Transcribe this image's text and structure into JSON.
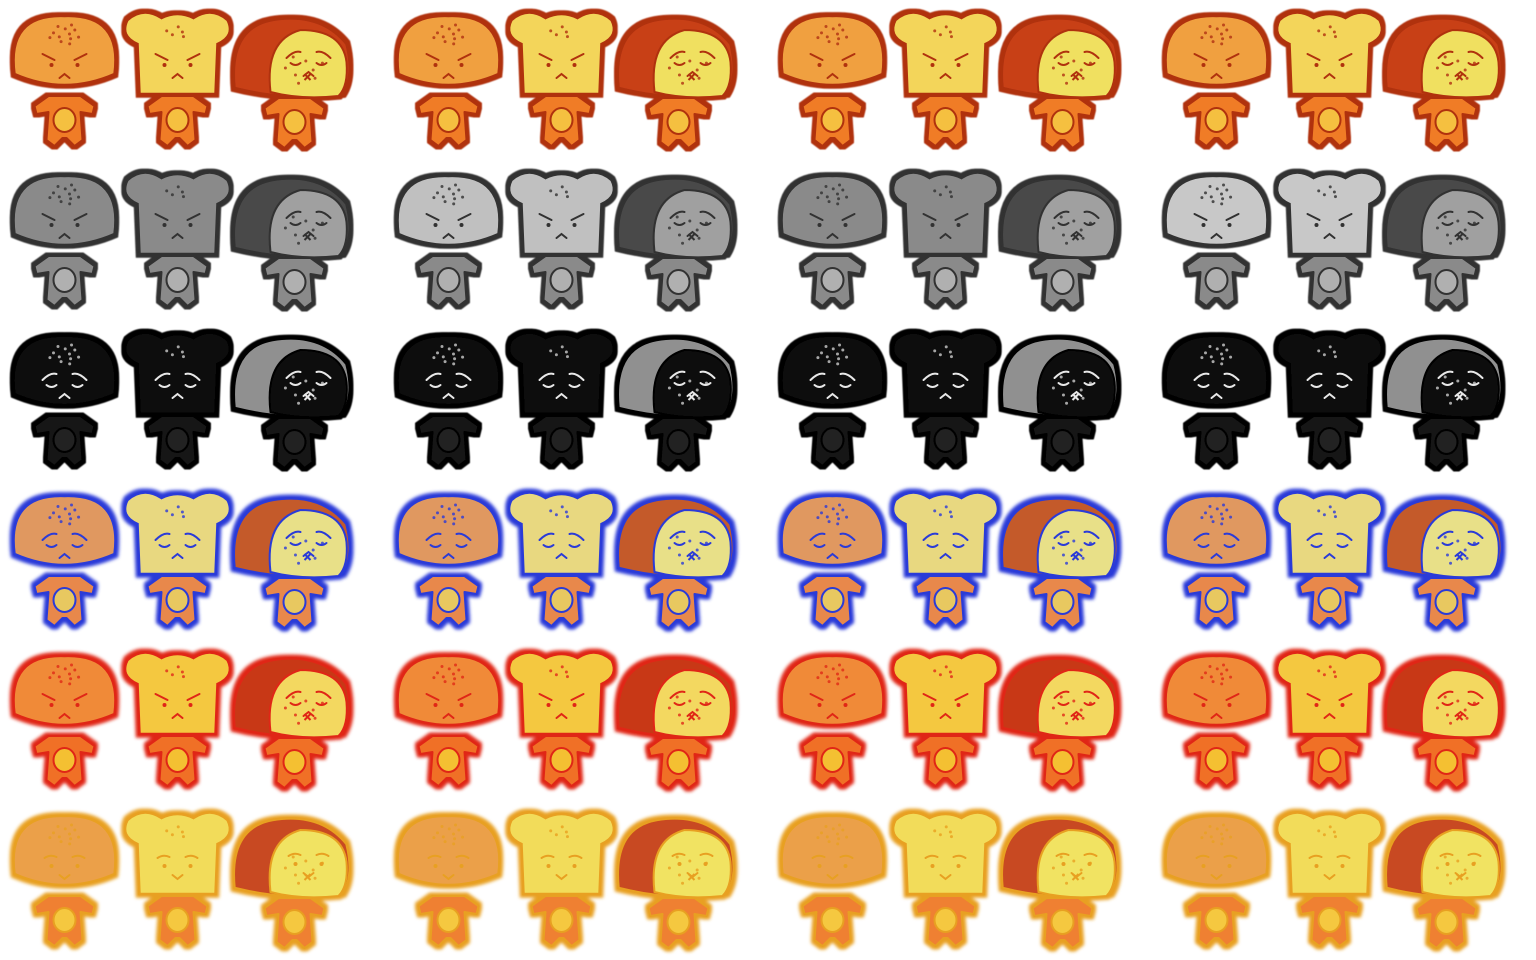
{
  "sheet": {
    "sets_per_row": 4,
    "characters": [
      {
        "type": "round-bun",
        "name": ""
      },
      {
        "type": "toast-slice",
        "name": ""
      },
      {
        "type": "loaf-bread",
        "name": ""
      }
    ],
    "rows": [
      {
        "variant": "normal",
        "mood": "angry",
        "outline": "#b03010",
        "colors": {
          "bun": "#f0a040",
          "toast": "#f3d55a",
          "loaf_crust": "#c84018",
          "loaf_face": "#f0e060",
          "body": "#f07c28",
          "belly": "#f5c040"
        }
      },
      {
        "variant": "grayscale",
        "mood": "angry",
        "outline": "#303030",
        "colors": {
          "bun": "#8c8c8c",
          "toast": "#a8a8a8",
          "loaf_crust": "#4a4a4a",
          "loaf_face": "#a0a0a0",
          "body": "#8a8a8a",
          "belly": "#b0b0b0"
        },
        "set_tints": [
          "#8a8a8a",
          "#c0c0c0",
          "#8a8a8a",
          "#c8c8c8"
        ]
      },
      {
        "variant": "burnt",
        "mood": "sad",
        "outline": "#000000",
        "colors": {
          "bun": "#111111",
          "toast": "#0a0a0a",
          "loaf_crust": "#909090",
          "loaf_face": "#111111",
          "body": "#151515",
          "belly": "#202020"
        }
      },
      {
        "variant": "frozen",
        "mood": "sad",
        "outline": "#2a3ad8",
        "colors": {
          "bun": "#e09860",
          "toast": "#e8d880",
          "loaf_crust": "#c45a2a",
          "loaf_face": "#e8e088",
          "body": "#e8884c",
          "belly": "#e8c860"
        }
      },
      {
        "variant": "heated",
        "mood": "angry",
        "outline": "#e02818",
        "colors": {
          "bun": "#f08a38",
          "toast": "#f4c840",
          "loaf_crust": "#c83818",
          "loaf_face": "#f3d860",
          "body": "#f07028",
          "belly": "#f4c030"
        }
      },
      {
        "variant": "glowing",
        "mood": "content",
        "outline": "#e8a020",
        "colors": {
          "bun": "#eba04a",
          "toast": "#f2dc5a",
          "loaf_crust": "#c84a20",
          "loaf_face": "#f1e362",
          "body": "#ef8030",
          "belly": "#f5c840"
        }
      }
    ]
  }
}
